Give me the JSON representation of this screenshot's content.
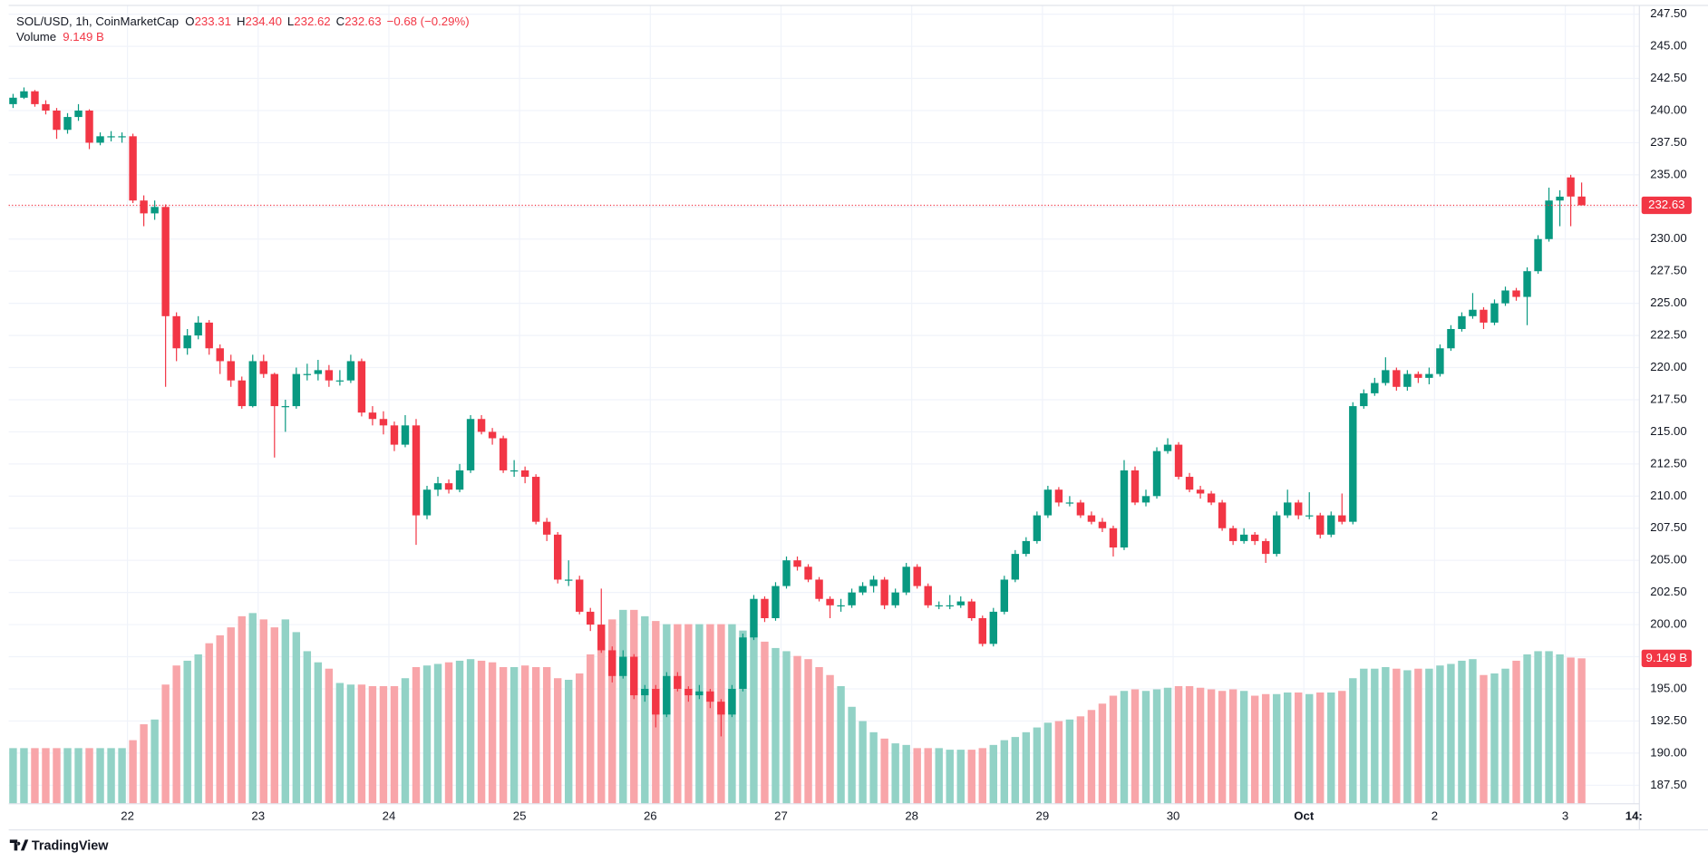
{
  "chart_data": {
    "type": "candlestick",
    "title": "SOL/USD, 1h, CoinMarketCap",
    "ohlc_legend": [
      {
        "key": "O",
        "value": "233.31"
      },
      {
        "key": "H",
        "value": "234.40"
      },
      {
        "key": "L",
        "value": "232.62"
      },
      {
        "key": "C",
        "value": "232.63"
      }
    ],
    "change_label": "−0.68 (−0.29%)",
    "volume_title": "Volume",
    "volume_label": "9.149 B",
    "up_color": "#089981",
    "down_color": "#f23645",
    "volume_up_color": "#92d2c6",
    "volume_down_color": "#f8a5a9",
    "ylim": [
      186.06,
      248.18
    ],
    "yticks": [
      {
        "value": 187.5,
        "label": "187.50"
      },
      {
        "value": 190,
        "label": "190.00"
      },
      {
        "value": 192.5,
        "label": "192.50"
      },
      {
        "value": 195,
        "label": "195.00"
      },
      {
        "value": 197.5,
        "label": "197.50"
      },
      {
        "value": 200,
        "label": "200.00"
      },
      {
        "value": 202.5,
        "label": "202.50"
      },
      {
        "value": 205,
        "label": "205.00"
      },
      {
        "value": 207.5,
        "label": "207.50"
      },
      {
        "value": 210,
        "label": "210.00"
      },
      {
        "value": 212.5,
        "label": "212.50"
      },
      {
        "value": 215,
        "label": "215.00"
      },
      {
        "value": 217.5,
        "label": "217.50"
      },
      {
        "value": 220,
        "label": "220.00"
      },
      {
        "value": 222.5,
        "label": "222.50"
      },
      {
        "value": 225,
        "label": "225.00"
      },
      {
        "value": 227.5,
        "label": "227.50"
      },
      {
        "value": 230,
        "label": "230.00"
      },
      {
        "value": 232.5,
        "label": "232.50"
      },
      {
        "value": 235,
        "label": "235.00"
      },
      {
        "value": 237.5,
        "label": "237.50"
      },
      {
        "value": 240,
        "label": "240.00"
      },
      {
        "value": 242.5,
        "label": "242.50"
      },
      {
        "value": 245,
        "label": "245.00"
      },
      {
        "value": 247.5,
        "label": "247.50"
      }
    ],
    "xlim": [
      -0.4,
      149.3
    ],
    "xticks": [
      {
        "value": 10.5,
        "label": "22"
      },
      {
        "value": 22.5,
        "label": "23"
      },
      {
        "value": 34.5,
        "label": "24"
      },
      {
        "value": 46.5,
        "label": "25"
      },
      {
        "value": 58.5,
        "label": "26"
      },
      {
        "value": 70.5,
        "label": "27"
      },
      {
        "value": 82.5,
        "label": "28"
      },
      {
        "value": 94.5,
        "label": "29"
      },
      {
        "value": 106.5,
        "label": "30"
      },
      {
        "value": 118.5,
        "label": "Oct"
      },
      {
        "value": 130.5,
        "label": "2"
      },
      {
        "value": 142.5,
        "label": "3"
      },
      {
        "value": 148.8,
        "label": "14:"
      }
    ],
    "grid": true,
    "candles": [
      [
        240.5,
        241.3,
        240.2,
        241
      ],
      [
        241,
        241.8,
        240.9,
        241.5
      ],
      [
        241.5,
        241.6,
        240.3,
        240.5
      ],
      [
        240.5,
        240.8,
        239.7,
        240
      ],
      [
        240,
        240.2,
        237.8,
        238.5
      ],
      [
        238.5,
        239.8,
        238.2,
        239.5
      ],
      [
        239.5,
        240.5,
        239.2,
        240
      ],
      [
        240,
        240.1,
        237,
        237.5
      ],
      [
        237.5,
        238.3,
        237.3,
        238
      ],
      [
        238,
        238.4,
        237.6,
        238
      ],
      [
        238,
        238.3,
        237.5,
        238
      ],
      [
        238,
        238.2,
        232.8,
        233
      ],
      [
        233,
        233.4,
        231,
        232
      ],
      [
        232,
        233,
        231.5,
        232.5
      ],
      [
        232.5,
        232.7,
        218.5,
        224
      ],
      [
        224,
        224.3,
        220.5,
        221.5
      ],
      [
        221.5,
        223,
        221,
        222.5
      ],
      [
        222.5,
        224,
        222.2,
        223.5
      ],
      [
        223.5,
        223.7,
        221,
        221.5
      ],
      [
        221.5,
        221.8,
        219.5,
        220.5
      ],
      [
        220.5,
        221,
        218.5,
        219
      ],
      [
        219,
        219.3,
        216.8,
        217
      ],
      [
        217,
        221,
        216.9,
        220.5
      ],
      [
        220.5,
        221,
        219.2,
        219.5
      ],
      [
        219.5,
        219.6,
        213,
        217
      ],
      [
        217,
        217.5,
        215,
        217
      ],
      [
        217,
        220,
        216.8,
        219.5
      ],
      [
        219.5,
        220.3,
        219,
        219.5
      ],
      [
        219.5,
        220.6,
        219,
        219.8
      ],
      [
        219.8,
        220.2,
        218.5,
        219
      ],
      [
        219,
        219.8,
        218.6,
        219
      ],
      [
        219,
        221,
        218.8,
        220.5
      ],
      [
        220.5,
        220.7,
        216.2,
        216.5
      ],
      [
        216.5,
        217,
        215.5,
        216
      ],
      [
        216,
        216.6,
        214.8,
        215.5
      ],
      [
        215.5,
        215.8,
        213.5,
        214
      ],
      [
        214,
        216.3,
        213.8,
        215.5
      ],
      [
        215.5,
        216,
        206.2,
        208.5
      ],
      [
        208.5,
        210.8,
        208.2,
        210.5
      ],
      [
        210.5,
        211.5,
        210,
        211
      ],
      [
        211,
        211.3,
        210.2,
        210.5
      ],
      [
        210.5,
        212.5,
        210.3,
        212
      ],
      [
        212,
        216.3,
        211.8,
        216
      ],
      [
        216,
        216.3,
        214.8,
        215
      ],
      [
        215,
        215.3,
        214,
        214.5
      ],
      [
        214.5,
        214.7,
        211.8,
        212
      ],
      [
        212,
        212.8,
        211.5,
        212
      ],
      [
        212,
        212.3,
        211,
        211.5
      ],
      [
        211.5,
        211.7,
        207.8,
        208
      ],
      [
        208,
        208.3,
        206.5,
        207
      ],
      [
        207,
        207.2,
        203.2,
        203.5
      ],
      [
        203.5,
        205,
        203,
        203.5
      ],
      [
        203.5,
        203.8,
        200.8,
        201
      ],
      [
        201,
        201.3,
        199.5,
        200
      ],
      [
        200,
        202.8,
        197.8,
        198
      ],
      [
        198,
        198.3,
        195.5,
        196
      ],
      [
        196,
        198,
        195.8,
        197.5
      ],
      [
        197.5,
        197.7,
        194.2,
        194.5
      ],
      [
        194.5,
        195.3,
        194,
        195
      ],
      [
        195,
        195.3,
        192,
        193
      ],
      [
        193,
        196.3,
        192.8,
        196
      ],
      [
        196,
        196.3,
        194.8,
        195
      ],
      [
        195,
        195.2,
        194,
        194.5
      ],
      [
        194.5,
        195.3,
        194.2,
        194.8
      ],
      [
        194.8,
        195,
        193.5,
        194
      ],
      [
        194,
        194.2,
        191.3,
        193
      ],
      [
        193,
        195.3,
        192.8,
        195
      ],
      [
        195,
        199.3,
        194.8,
        199
      ],
      [
        199,
        202.3,
        198.8,
        202
      ],
      [
        202,
        202.2,
        200.2,
        200.5
      ],
      [
        200.5,
        203.3,
        200.3,
        203
      ],
      [
        203,
        205.3,
        202.8,
        205
      ],
      [
        205,
        205.3,
        204.2,
        204.5
      ],
      [
        204.5,
        204.7,
        203.3,
        203.5
      ],
      [
        203.5,
        203.7,
        201.8,
        202
      ],
      [
        202,
        202.2,
        200.5,
        201.5
      ],
      [
        201.5,
        202,
        201,
        201.5
      ],
      [
        201.5,
        202.8,
        201.3,
        202.5
      ],
      [
        202.5,
        203.3,
        202.3,
        203
      ],
      [
        203,
        203.8,
        202.5,
        203.5
      ],
      [
        203.5,
        203.7,
        201.2,
        201.5
      ],
      [
        201.5,
        202.8,
        201.3,
        202.5
      ],
      [
        202.5,
        204.8,
        202.3,
        204.5
      ],
      [
        204.5,
        204.7,
        202.8,
        203
      ],
      [
        203,
        203.2,
        201.3,
        201.5
      ],
      [
        201.5,
        201.8,
        201.2,
        201.5
      ],
      [
        201.5,
        202.3,
        201.2,
        201.5
      ],
      [
        201.5,
        202.2,
        201.3,
        201.8
      ],
      [
        201.8,
        202,
        200.3,
        200.5
      ],
      [
        200.5,
        200.7,
        198.3,
        198.5
      ],
      [
        198.5,
        201.3,
        198.3,
        201
      ],
      [
        201,
        203.8,
        200.8,
        203.5
      ],
      [
        203.5,
        205.8,
        203.3,
        205.5
      ],
      [
        205.5,
        206.8,
        205.3,
        206.5
      ],
      [
        206.5,
        208.8,
        206.3,
        208.5
      ],
      [
        208.5,
        210.8,
        208.3,
        210.5
      ],
      [
        210.5,
        210.7,
        209.2,
        209.5
      ],
      [
        209.5,
        210,
        209.2,
        209.5
      ],
      [
        209.5,
        209.7,
        208.3,
        208.5
      ],
      [
        208.5,
        208.8,
        207.8,
        208
      ],
      [
        208,
        208.3,
        207.2,
        207.5
      ],
      [
        207.5,
        207.7,
        205.3,
        206
      ],
      [
        206,
        212.8,
        205.8,
        212
      ],
      [
        212,
        212.3,
        209.3,
        209.5
      ],
      [
        209.5,
        210.5,
        209.2,
        210
      ],
      [
        210,
        213.8,
        209.8,
        213.5
      ],
      [
        213.5,
        214.5,
        213.3,
        214
      ],
      [
        214,
        214.2,
        211.3,
        211.5
      ],
      [
        211.5,
        211.8,
        210.3,
        210.5
      ],
      [
        210.5,
        210.8,
        209.8,
        210.2
      ],
      [
        210.2,
        210.4,
        209.3,
        209.5
      ],
      [
        209.5,
        209.7,
        207.3,
        207.5
      ],
      [
        207.5,
        207.7,
        206.2,
        206.5
      ],
      [
        206.5,
        207.5,
        206.3,
        207
      ],
      [
        207,
        207.2,
        206.2,
        206.5
      ],
      [
        206.5,
        206.7,
        204.8,
        205.5
      ],
      [
        205.5,
        208.8,
        205.3,
        208.5
      ],
      [
        208.5,
        210.5,
        208.3,
        209.5
      ],
      [
        209.5,
        209.7,
        208.2,
        208.5
      ],
      [
        208.5,
        210.3,
        208.2,
        208.5
      ],
      [
        208.5,
        208.7,
        206.7,
        207
      ],
      [
        207,
        208.8,
        206.8,
        208.5
      ],
      [
        208.5,
        210.2,
        207.8,
        208
      ],
      [
        208,
        217.3,
        207.8,
        217
      ],
      [
        217,
        218.3,
        216.8,
        218
      ],
      [
        218,
        219.2,
        217.8,
        218.8
      ],
      [
        218.8,
        220.8,
        218.6,
        219.8
      ],
      [
        219.8,
        220,
        218.2,
        218.5
      ],
      [
        218.5,
        219.8,
        218.2,
        219.5
      ],
      [
        219.5,
        219.7,
        218.8,
        219.2
      ],
      [
        219.2,
        220,
        218.7,
        219.5
      ],
      [
        219.5,
        221.8,
        219.3,
        221.5
      ],
      [
        221.5,
        223.3,
        221.3,
        223
      ],
      [
        223,
        224.3,
        222.8,
        224
      ],
      [
        224,
        225.8,
        223.8,
        224.5
      ],
      [
        224.5,
        224.7,
        223,
        223.5
      ],
      [
        223.5,
        225.3,
        223.3,
        225
      ],
      [
        225,
        226.3,
        224.8,
        226
      ],
      [
        226,
        226.2,
        225.2,
        225.5
      ],
      [
        225.5,
        227.8,
        223.3,
        227.5
      ],
      [
        227.5,
        230.3,
        227.3,
        230
      ],
      [
        230,
        234,
        229.8,
        233
      ],
      [
        233,
        233.8,
        231,
        233.3
      ],
      [
        234.8,
        235,
        231,
        233.31
      ],
      [
        233.31,
        234.4,
        232.62,
        232.63
      ]
    ],
    "volume": [
      3.5,
      3.5,
      3.5,
      3.5,
      3.5,
      3.5,
      3.5,
      3.5,
      3.5,
      3.5,
      3.5,
      4.0,
      5.0,
      5.3,
      7.5,
      8.7,
      9.0,
      9.4,
      10.1,
      10.6,
      11.1,
      11.8,
      12.0,
      11.6,
      11.1,
      11.6,
      10.8,
      9.6,
      8.9,
      8.5,
      7.6,
      7.5,
      7.5,
      7.4,
      7.4,
      7.4,
      7.9,
      8.6,
      8.7,
      8.8,
      8.9,
      9.0,
      9.1,
      9.0,
      8.9,
      8.6,
      8.6,
      8.7,
      8.6,
      8.6,
      7.9,
      7.8,
      8.2,
      9.4,
      10.8,
      11.6,
      12.2,
      12.2,
      11.8,
      11.5,
      11.3,
      11.3,
      11.3,
      11.3,
      11.3,
      11.3,
      11.3,
      10.9,
      10.8,
      10.2,
      9.8,
      9.6,
      9.3,
      9.1,
      8.6,
      8.1,
      7.4,
      6.1,
      5.2,
      4.5,
      4.1,
      3.8,
      3.7,
      3.5,
      3.5,
      3.5,
      3.4,
      3.4,
      3.4,
      3.5,
      3.7,
      4.0,
      4.2,
      4.5,
      4.8,
      5.1,
      5.2,
      5.3,
      5.5,
      5.9,
      6.3,
      6.8,
      7.1,
      7.2,
      7.1,
      7.2,
      7.3,
      7.4,
      7.4,
      7.3,
      7.2,
      7.1,
      7.2,
      7.1,
      6.8,
      6.9,
      6.9,
      7.0,
      7.0,
      6.9,
      7.0,
      7.0,
      7.1,
      7.9,
      8.5,
      8.5,
      8.6,
      8.5,
      8.4,
      8.5,
      8.5,
      8.7,
      8.8,
      9.0,
      9.1,
      8.1,
      8.2,
      8.5,
      9.0,
      9.4,
      9.6,
      9.6,
      9.4,
      9.2,
      9.149
    ]
  },
  "footer": {
    "brand": "TradingView"
  }
}
